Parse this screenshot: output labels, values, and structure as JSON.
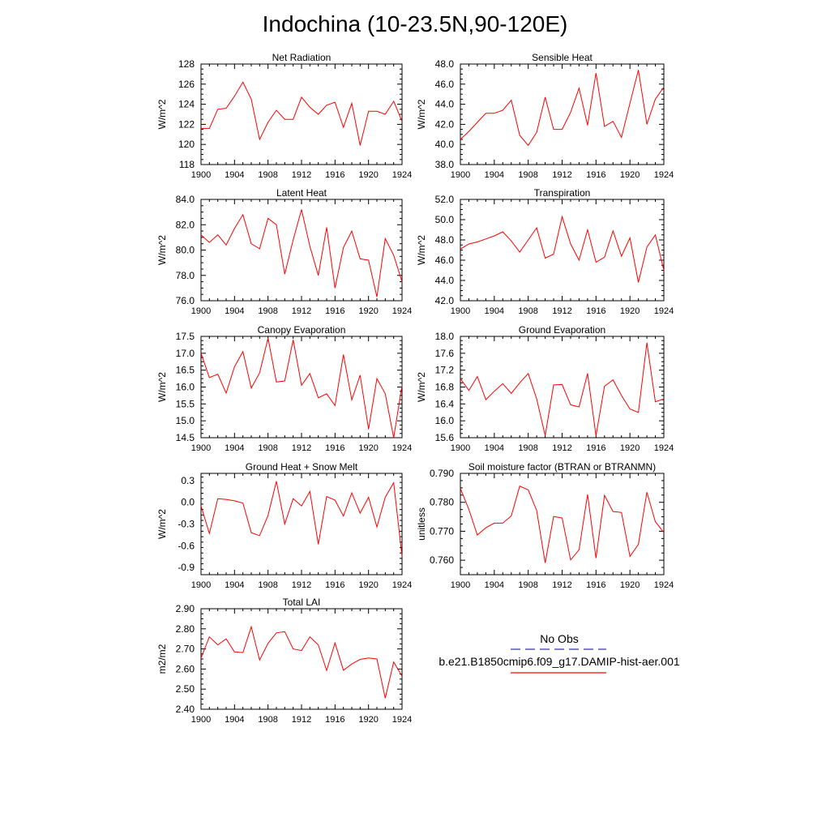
{
  "title": "Indochina (10-23.5N,90-120E)",
  "legend": {
    "obs_label": "No Obs",
    "obs_color": "#3333aa",
    "model_label": "b.e21.B1850cmip6.f09_g17.DAMIP-hist-aer.001",
    "model_color": "#ff0000"
  },
  "chart_data": [
    {
      "type": "line",
      "title": "Net Radiation",
      "ylabel": "W/m^2",
      "xlim": [
        1900,
        1924
      ],
      "ylim": [
        118,
        128
      ],
      "x_ticks": [
        1900,
        1904,
        1908,
        1912,
        1916,
        1920,
        1924
      ],
      "y_ticks": [
        "118",
        "120",
        "122",
        "124",
        "126",
        "128"
      ],
      "y_tick_values": [
        118,
        120,
        122,
        124,
        126,
        128
      ],
      "x": [
        1900,
        1901,
        1902,
        1903,
        1904,
        1905,
        1906,
        1907,
        1908,
        1909,
        1910,
        1911,
        1912,
        1913,
        1914,
        1915,
        1916,
        1917,
        1918,
        1919,
        1920,
        1921,
        1922,
        1923,
        1924
      ],
      "series": [
        {
          "values": [
            121.6,
            121.6,
            123.5,
            123.6,
            124.8,
            126.2,
            124.5,
            120.5,
            122.2,
            123.4,
            122.5,
            122.5,
            124.7,
            123.7,
            123.0,
            123.9,
            124.2,
            121.7,
            124.1,
            119.9,
            123.3,
            123.3,
            123.0,
            124.3,
            122.3
          ]
        }
      ]
    },
    {
      "type": "line",
      "title": "Sensible Heat",
      "ylabel": "W/m^2",
      "xlim": [
        1900,
        1924
      ],
      "ylim": [
        38,
        48
      ],
      "x_ticks": [
        1900,
        1904,
        1908,
        1912,
        1916,
        1920,
        1924
      ],
      "y_ticks": [
        "38.0",
        "40.0",
        "42.0",
        "44.0",
        "46.0",
        "48.0"
      ],
      "y_tick_values": [
        38,
        40,
        42,
        44,
        46,
        48
      ],
      "x": [
        1900,
        1901,
        1902,
        1903,
        1904,
        1905,
        1906,
        1907,
        1908,
        1909,
        1910,
        1911,
        1912,
        1913,
        1914,
        1915,
        1916,
        1917,
        1918,
        1919,
        1920,
        1921,
        1922,
        1923,
        1924
      ],
      "series": [
        {
          "values": [
            40.5,
            41.3,
            42.2,
            43.1,
            43.1,
            43.4,
            44.4,
            40.9,
            39.9,
            41.2,
            44.7,
            41.5,
            41.5,
            43.2,
            45.6,
            41.9,
            47.1,
            41.8,
            42.3,
            40.7,
            44.1,
            47.4,
            42.0,
            44.5,
            45.7
          ]
        }
      ]
    },
    {
      "type": "line",
      "title": "Latent Heat",
      "ylabel": "W/m^2",
      "xlim": [
        1900,
        1924
      ],
      "ylim": [
        76,
        84
      ],
      "x_ticks": [
        1900,
        1904,
        1908,
        1912,
        1916,
        1920,
        1924
      ],
      "y_ticks": [
        "76.0",
        "78.0",
        "80.0",
        "82.0",
        "84.0"
      ],
      "y_tick_values": [
        76,
        78,
        80,
        82,
        84
      ],
      "x": [
        1900,
        1901,
        1902,
        1903,
        1904,
        1905,
        1906,
        1907,
        1908,
        1909,
        1910,
        1911,
        1912,
        1913,
        1914,
        1915,
        1916,
        1917,
        1918,
        1919,
        1920,
        1921,
        1922,
        1923,
        1924
      ],
      "series": [
        {
          "values": [
            81.2,
            80.6,
            81.2,
            80.4,
            81.7,
            82.8,
            80.5,
            80.1,
            82.5,
            82.0,
            78.1,
            80.8,
            83.2,
            80.3,
            78.0,
            81.8,
            77.0,
            80.2,
            81.5,
            79.3,
            79.2,
            76.3,
            80.9,
            79.6,
            77.5
          ]
        }
      ]
    },
    {
      "type": "line",
      "title": "Transpiration",
      "ylabel": "W/m^2",
      "xlim": [
        1900,
        1924
      ],
      "ylim": [
        42,
        52
      ],
      "x_ticks": [
        1900,
        1904,
        1908,
        1912,
        1916,
        1920,
        1924
      ],
      "y_ticks": [
        "42.0",
        "44.0",
        "46.0",
        "48.0",
        "50.0",
        "52.0"
      ],
      "y_tick_values": [
        42,
        44,
        46,
        48,
        50,
        52
      ],
      "x": [
        1900,
        1901,
        1902,
        1903,
        1904,
        1905,
        1906,
        1907,
        1908,
        1909,
        1910,
        1911,
        1912,
        1913,
        1914,
        1915,
        1916,
        1917,
        1918,
        1919,
        1920,
        1921,
        1922,
        1923,
        1924
      ],
      "series": [
        {
          "values": [
            47.1,
            47.6,
            47.8,
            48.1,
            48.4,
            48.8,
            47.9,
            46.8,
            48.0,
            49.2,
            46.2,
            46.6,
            50.3,
            47.6,
            46.0,
            49.0,
            45.8,
            46.3,
            48.9,
            46.4,
            48.2,
            43.8,
            47.3,
            48.5,
            45.0
          ]
        }
      ]
    },
    {
      "type": "line",
      "title": "Canopy Evaporation",
      "ylabel": "W/m^2",
      "xlim": [
        1900,
        1924
      ],
      "ylim": [
        14.5,
        17.5
      ],
      "x_ticks": [
        1900,
        1904,
        1908,
        1912,
        1916,
        1920,
        1924
      ],
      "y_ticks": [
        "14.5",
        "15.0",
        "15.5",
        "16.0",
        "16.5",
        "17.0",
        "17.5"
      ],
      "y_tick_values": [
        14.5,
        15.0,
        15.5,
        16.0,
        16.5,
        17.0,
        17.5
      ],
      "x": [
        1900,
        1901,
        1902,
        1903,
        1904,
        1905,
        1906,
        1907,
        1908,
        1909,
        1910,
        1911,
        1912,
        1913,
        1914,
        1915,
        1916,
        1917,
        1918,
        1919,
        1920,
        1921,
        1922,
        1923,
        1924
      ],
      "series": [
        {
          "values": [
            17.0,
            16.28,
            16.38,
            15.82,
            16.6,
            17.05,
            15.97,
            16.42,
            17.45,
            16.15,
            16.18,
            17.4,
            16.05,
            16.4,
            15.68,
            15.8,
            15.45,
            16.96,
            15.62,
            16.35,
            14.75,
            16.25,
            15.8,
            14.5,
            16.05
          ]
        }
      ]
    },
    {
      "type": "line",
      "title": "Ground Evaporation",
      "ylabel": "W/m^2",
      "xlim": [
        1900,
        1924
      ],
      "ylim": [
        15.6,
        18.0
      ],
      "x_ticks": [
        1900,
        1904,
        1908,
        1912,
        1916,
        1920,
        1924
      ],
      "y_ticks": [
        "15.6",
        "16.0",
        "16.4",
        "16.8",
        "17.2",
        "17.6",
        "18.0"
      ],
      "y_tick_values": [
        15.6,
        16.0,
        16.4,
        16.8,
        17.2,
        17.6,
        18.0
      ],
      "x": [
        1900,
        1901,
        1902,
        1903,
        1904,
        1905,
        1906,
        1907,
        1908,
        1909,
        1910,
        1911,
        1912,
        1913,
        1914,
        1915,
        1916,
        1917,
        1918,
        1919,
        1920,
        1921,
        1922,
        1923,
        1924
      ],
      "series": [
        {
          "values": [
            17.0,
            16.72,
            17.05,
            16.5,
            16.7,
            16.88,
            16.65,
            16.9,
            17.12,
            16.52,
            15.65,
            16.85,
            16.86,
            16.38,
            16.33,
            17.12,
            15.65,
            16.82,
            16.97,
            16.6,
            16.28,
            16.2,
            17.85,
            16.45,
            16.52
          ]
        }
      ]
    },
    {
      "type": "line",
      "title": "Ground Heat + Snow Melt",
      "ylabel": "W/m^2",
      "xlim": [
        1900,
        1924
      ],
      "ylim": [
        -1.0,
        0.4
      ],
      "x_ticks": [
        1900,
        1904,
        1908,
        1912,
        1916,
        1920,
        1924
      ],
      "y_ticks": [
        "-0.9",
        "-0.6",
        "-0.3",
        "0.0",
        "0.3"
      ],
      "y_tick_values": [
        -0.9,
        -0.6,
        -0.3,
        0.0,
        0.3
      ],
      "x": [
        1900,
        1901,
        1902,
        1903,
        1904,
        1905,
        1906,
        1907,
        1908,
        1909,
        1910,
        1911,
        1912,
        1913,
        1914,
        1915,
        1916,
        1917,
        1918,
        1919,
        1920,
        1921,
        1922,
        1923,
        1924
      ],
      "series": [
        {
          "values": [
            -0.05,
            -0.43,
            0.05,
            0.04,
            0.02,
            -0.01,
            -0.42,
            -0.46,
            -0.18,
            0.29,
            -0.3,
            0.05,
            -0.05,
            0.15,
            -0.58,
            0.08,
            0.03,
            -0.19,
            0.13,
            -0.15,
            0.07,
            -0.34,
            0.07,
            0.27,
            -0.75
          ]
        }
      ]
    },
    {
      "type": "line",
      "title": "Soil moisture factor (BTRAN or BTRANMN)",
      "ylabel": "unitless",
      "xlim": [
        1900,
        1924
      ],
      "ylim": [
        0.755,
        0.79
      ],
      "x_ticks": [
        1900,
        1904,
        1908,
        1912,
        1916,
        1920,
        1924
      ],
      "y_ticks": [
        "0.760",
        "0.770",
        "0.780",
        "0.790"
      ],
      "y_tick_values": [
        0.76,
        0.77,
        0.78,
        0.79
      ],
      "x": [
        1900,
        1901,
        1902,
        1903,
        1904,
        1905,
        1906,
        1907,
        1908,
        1909,
        1910,
        1911,
        1912,
        1913,
        1914,
        1915,
        1916,
        1917,
        1918,
        1919,
        1920,
        1921,
        1922,
        1923,
        1924
      ],
      "series": [
        {
          "values": [
            0.7848,
            0.7775,
            0.7687,
            0.7712,
            0.7728,
            0.7728,
            0.7753,
            0.7856,
            0.7843,
            0.7772,
            0.7591,
            0.7751,
            0.7746,
            0.7601,
            0.7636,
            0.7827,
            0.7607,
            0.7824,
            0.7768,
            0.7765,
            0.7613,
            0.7655,
            0.7835,
            0.7733,
            0.7696
          ]
        }
      ]
    },
    {
      "type": "line",
      "title": "Total LAI",
      "ylabel": "m2/m2",
      "xlim": [
        1900,
        1924
      ],
      "ylim": [
        2.4,
        2.9
      ],
      "x_ticks": [
        1900,
        1904,
        1908,
        1912,
        1916,
        1920,
        1924
      ],
      "y_ticks": [
        "2.40",
        "2.50",
        "2.60",
        "2.70",
        "2.80",
        "2.90"
      ],
      "y_tick_values": [
        2.4,
        2.5,
        2.6,
        2.7,
        2.8,
        2.9
      ],
      "x": [
        1900,
        1901,
        1902,
        1903,
        1904,
        1905,
        1906,
        1907,
        1908,
        1909,
        1910,
        1911,
        1912,
        1913,
        1914,
        1915,
        1916,
        1917,
        1918,
        1919,
        1920,
        1921,
        1922,
        1923,
        1924
      ],
      "series": [
        {
          "values": [
            2.655,
            2.76,
            2.72,
            2.75,
            2.685,
            2.682,
            2.81,
            2.645,
            2.728,
            2.78,
            2.786,
            2.7,
            2.692,
            2.76,
            2.72,
            2.593,
            2.73,
            2.594,
            2.625,
            2.648,
            2.655,
            2.65,
            2.455,
            2.635,
            2.565
          ]
        }
      ]
    }
  ]
}
